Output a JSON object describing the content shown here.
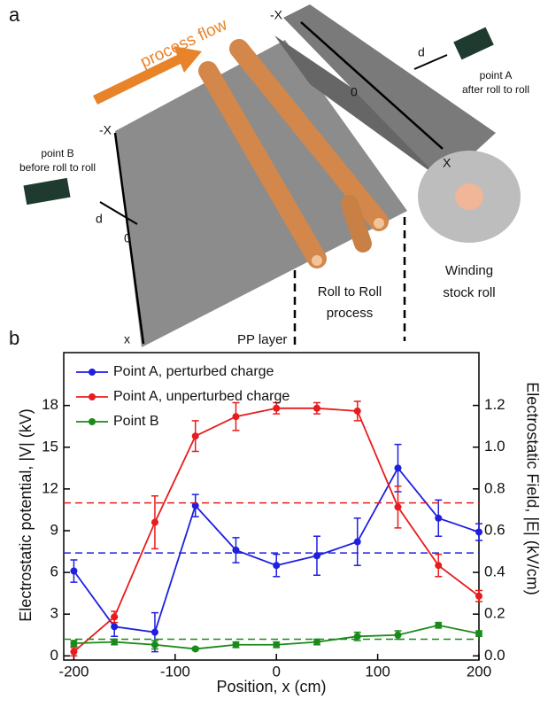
{
  "panel_labels": [
    "a",
    "b"
  ],
  "illustration": {
    "process_flow": "process flow",
    "roll_neg_x": "-X",
    "roll_zero": "0",
    "roll_x": "X",
    "roll_d": "d",
    "point_a": "point  A",
    "point_a_note": "after roll to roll",
    "sheet_neg_x": "-X",
    "sheet_zero": "0",
    "sheet_x": "x",
    "sheet_d": "d",
    "point_b": "point  B",
    "point_b_note": "before roll to roll",
    "roll_to_roll_1": "Roll to Roll",
    "roll_to_roll_2": "process",
    "winding_1": "Winding",
    "winding_2": "stock roll",
    "pp_layer": "PP layer"
  },
  "chart_data": {
    "type": "line",
    "x_label": "Position, x (cm)",
    "y_label": "Electrostatic potential, |V| (kV)",
    "y2_label": "Electrostatic Field, |E| (kV/cm)",
    "x": [
      -200,
      -160,
      -120,
      -80,
      -40,
      0,
      40,
      80,
      120,
      160,
      200
    ],
    "series": [
      {
        "name": "Point A, perturbed charge",
        "color": "#1f1fe0",
        "values": [
          6.1,
          2.1,
          1.7,
          10.8,
          7.6,
          6.5,
          7.2,
          8.2,
          13.5,
          9.9,
          8.9
        ],
        "errors": [
          0.8,
          0.7,
          1.4,
          0.8,
          0.9,
          0.8,
          1.4,
          1.7,
          1.7,
          1.3,
          0.6
        ],
        "reference": 7.4
      },
      {
        "name": "Point A, unperturbed charge",
        "color": "#e81c1c",
        "values": [
          0.3,
          2.8,
          9.6,
          15.8,
          17.2,
          17.8,
          17.8,
          17.6,
          10.7,
          6.5,
          4.3
        ],
        "errors": [
          0.3,
          0.4,
          1.9,
          1.1,
          1.0,
          0.4,
          0.4,
          0.7,
          1.5,
          0.8,
          0.4
        ],
        "reference": 11.0
      },
      {
        "name": "Point B",
        "color": "#1a8a1a",
        "values": [
          0.9,
          1.0,
          0.8,
          0.5,
          0.8,
          0.8,
          1.0,
          1.4,
          1.5,
          2.2,
          1.6
        ],
        "errors": [
          0.2,
          0.2,
          0.3,
          0.1,
          0.2,
          0.2,
          0.2,
          0.3,
          0.3,
          0.2,
          0.2
        ],
        "reference": 1.2
      }
    ],
    "xlim": [
      -210,
      200
    ],
    "xticks": [
      -200,
      -100,
      0,
      100,
      200
    ],
    "ylim": [
      -0.3,
      21.8
    ],
    "yticks": [
      0,
      3,
      6,
      9,
      12,
      15,
      18
    ],
    "y2lim": [
      -0.02,
      1.453
    ],
    "y2ticks": [
      {
        "value": 0,
        "label": "0.0"
      },
      0.2,
      0.4,
      0.6,
      0.8,
      {
        "value": 1,
        "label": "1.0"
      },
      1.2
    ]
  }
}
